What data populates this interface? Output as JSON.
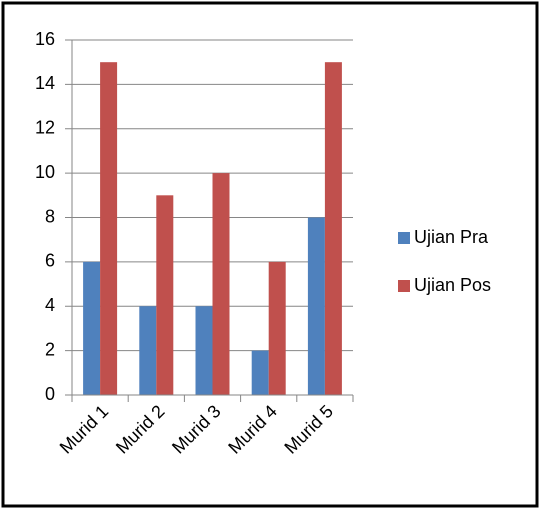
{
  "chart_data": {
    "type": "bar",
    "categories": [
      "Murid 1",
      "Murid 2",
      "Murid 3",
      "Murid 4",
      "Murid 5"
    ],
    "series": [
      {
        "name": "Ujian Pra",
        "color": "#4f81bd",
        "values": [
          6,
          4,
          4,
          2,
          8
        ]
      },
      {
        "name": "Ujian Pos",
        "color": "#c0504d",
        "values": [
          15,
          9,
          10,
          6,
          15
        ]
      }
    ],
    "ylim": [
      0,
      16
    ],
    "yticks": [
      0,
      2,
      4,
      6,
      8,
      10,
      12,
      14,
      16
    ],
    "grid": true,
    "legend": "right"
  }
}
